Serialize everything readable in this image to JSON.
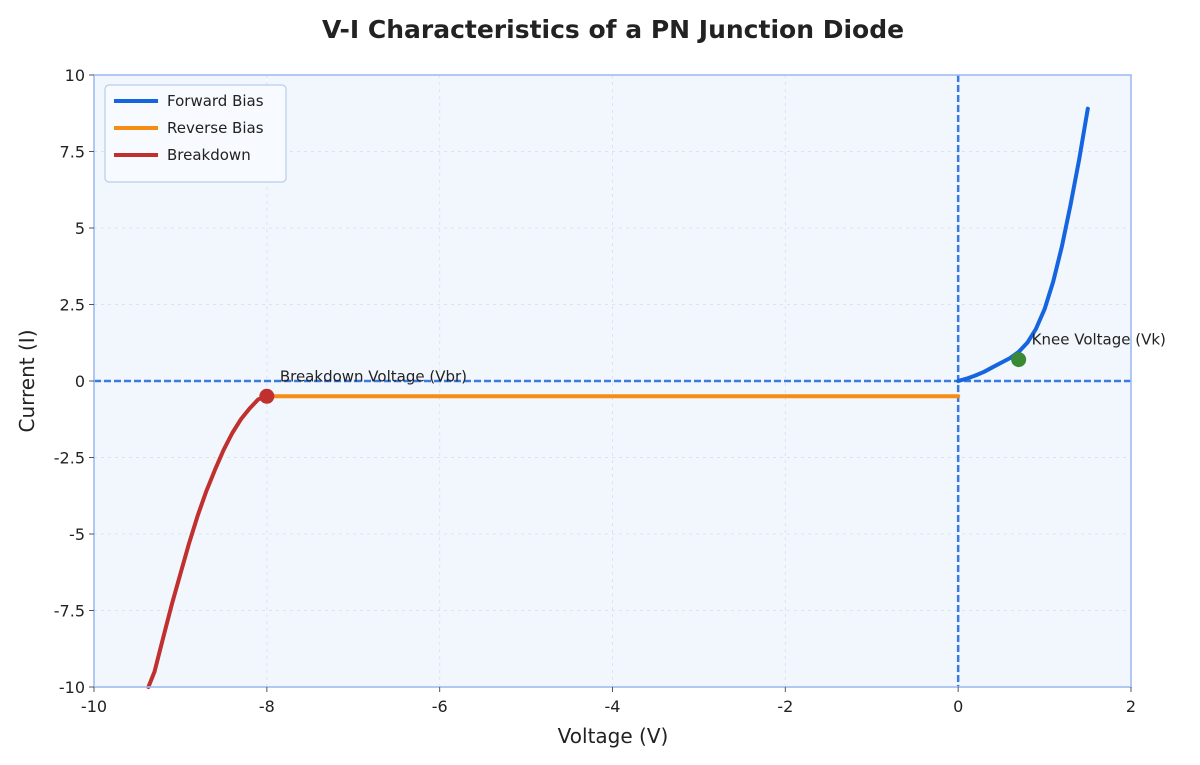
{
  "chart_data": {
    "type": "line",
    "title": "V-I Characteristics of a PN Junction Diode",
    "xlabel": "Voltage (V)",
    "ylabel": "Current (I)",
    "xlim": [
      -10,
      2
    ],
    "ylim": [
      -10,
      10
    ],
    "xticks": [
      -10,
      -8,
      -6,
      -4,
      -2,
      0,
      2
    ],
    "xtick_labels": [
      "-10",
      "-8",
      "-6",
      "-4",
      "-2",
      "0",
      "2"
    ],
    "yticks": [
      -10,
      -7.5,
      -5,
      -2.5,
      0,
      2.5,
      5,
      7.5,
      10
    ],
    "ytick_labels": [
      "-10",
      "-7.5",
      "-5",
      "-2.5",
      "0",
      "2.5",
      "5",
      "7.5",
      "10"
    ],
    "grid": true,
    "legend_position": "top-left",
    "series": [
      {
        "name": "Forward Bias",
        "color": "#1565e0",
        "x": [
          0,
          0.1,
          0.2,
          0.3,
          0.4,
          0.5,
          0.6,
          0.7,
          0.8,
          0.9,
          1.0,
          1.1,
          1.2,
          1.3,
          1.4,
          1.5
        ],
        "y": [
          0,
          0.08,
          0.18,
          0.3,
          0.45,
          0.6,
          0.75,
          0.95,
          1.25,
          1.7,
          2.35,
          3.25,
          4.4,
          5.75,
          7.25,
          8.9
        ]
      },
      {
        "name": "Reverse Bias",
        "color": "#f78c14",
        "x": [
          -8,
          -6,
          -4,
          -2,
          0
        ],
        "y": [
          -0.5,
          -0.5,
          -0.5,
          -0.5,
          -0.5
        ]
      },
      {
        "name": "Breakdown",
        "color": "#c0302e",
        "x": [
          -8,
          -8.1,
          -8.2,
          -8.3,
          -8.4,
          -8.5,
          -8.6,
          -8.7,
          -8.8,
          -8.9,
          -9.0,
          -9.1,
          -9.2,
          -9.3,
          -9.37
        ],
        "y": [
          -0.5,
          -0.6,
          -0.9,
          -1.25,
          -1.7,
          -2.25,
          -2.9,
          -3.6,
          -4.4,
          -5.3,
          -6.3,
          -7.3,
          -8.4,
          -9.5,
          -10
        ]
      }
    ],
    "reference_lines": {
      "color": "#3a7be0",
      "x": 0,
      "y": 0
    },
    "annotations": [
      {
        "text": "Knee Voltage (Vk)",
        "x": 0.7,
        "y": 0.7,
        "marker_color": "#3a8a35"
      },
      {
        "text": "Breakdown Voltage (Vbr)",
        "x": -8,
        "y": -0.5,
        "marker_color": "#c0302e"
      }
    ]
  }
}
